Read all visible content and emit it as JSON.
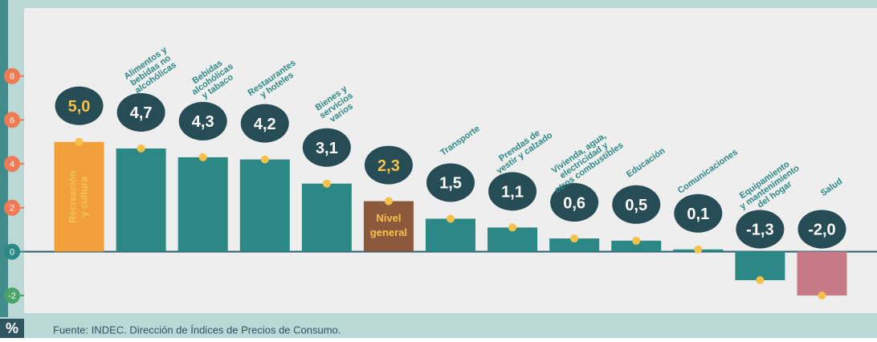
{
  "chart_data": {
    "type": "bar",
    "y_label": "%",
    "source": "Fuente: INDEC. Dirección de Índices de Precios de Consumo.",
    "categories": [
      "Recreación\ny cultura",
      "Alimentos y\nbebidas no\nalcohólicas",
      "Bebidas\nalcohólicas\ny tabaco",
      "Restaurantes\ny hoteles",
      "Bienes y\nservicios\nvarios",
      "Nivel\ngeneral",
      "Transporte",
      "Prendas de\nvestir y calzado",
      "Vivienda, agua,\nelectricidad y\notros combustibles",
      "Educación",
      "Comunicaciones",
      "Equipamiento\ny mantenimiento\ndel hogar",
      "Salud"
    ],
    "values": [
      5.0,
      4.7,
      4.3,
      4.2,
      3.1,
      2.3,
      1.5,
      1.1,
      0.6,
      0.5,
      0.1,
      -1.3,
      -2.0
    ],
    "value_labels": [
      "5,0",
      "4,7",
      "4,3",
      "4,2",
      "3,1",
      "2,3",
      "1,5",
      "1,1",
      "0,6",
      "0,5",
      "0,1",
      "-1,3",
      "-2,0"
    ],
    "colors": [
      "#f2a03c",
      "#2b8884",
      "#2b8884",
      "#2b8884",
      "#2b8884",
      "#8b5a3c",
      "#2b8884",
      "#2b8884",
      "#2b8884",
      "#2b8884",
      "#2b8884",
      "#2b8884",
      "#c77a86"
    ],
    "label_inside": [
      true,
      false,
      false,
      false,
      false,
      true,
      false,
      false,
      false,
      false,
      false,
      false,
      false
    ],
    "ylim": [
      -2.8,
      11.1
    ],
    "yticks": [
      -2,
      0,
      2,
      4,
      6,
      8
    ],
    "tick_colors": [
      "#4aa46a",
      "#2b8884",
      "#ef7a54",
      "#ef7a54",
      "#ef7a54",
      "#ef7a54"
    ]
  }
}
